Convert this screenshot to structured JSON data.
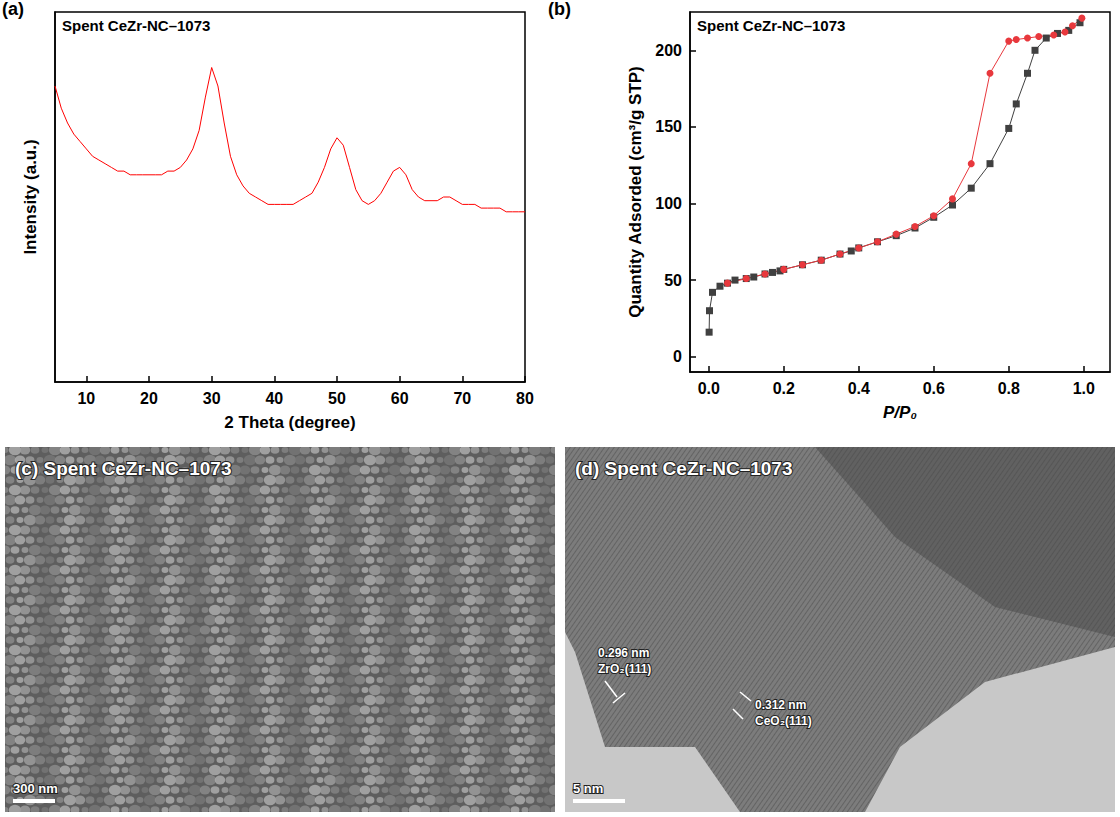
{
  "chart_data": [
    {
      "type": "line",
      "panel_label": "(a)",
      "title": "Spent CeZr-NC–1073",
      "x_label": "2 Theta (degree)",
      "y_label": "Intensity (a.u.)",
      "color": "#ff0000",
      "grid": false,
      "tick_labels": "x",
      "xlim": [
        5,
        80
      ],
      "xticks": [
        10,
        20,
        30,
        40,
        50,
        60,
        70,
        80
      ],
      "ylim": [
        0,
        100
      ],
      "x": [
        5,
        6,
        7,
        8,
        9,
        10,
        11,
        12,
        13,
        14,
        15,
        16,
        17,
        18,
        19,
        20,
        21,
        22,
        23,
        24,
        25,
        26,
        27,
        28,
        29,
        30,
        31,
        32,
        33,
        34,
        35,
        36,
        37,
        38,
        39,
        40,
        41,
        42,
        43,
        44,
        45,
        46,
        47,
        48,
        49,
        50,
        51,
        52,
        53,
        54,
        55,
        56,
        57,
        58,
        59,
        60,
        61,
        62,
        63,
        64,
        65,
        66,
        67,
        68,
        69,
        70,
        71,
        72,
        73,
        74,
        75,
        76,
        77,
        78,
        79,
        80
      ],
      "values": [
        80,
        74,
        70,
        67,
        65,
        63,
        61,
        60,
        59,
        58,
        57,
        57,
        56,
        56,
        56,
        56,
        56,
        56,
        57,
        57,
        58,
        60,
        63,
        68,
        77,
        85,
        80,
        70,
        61,
        56,
        53,
        51,
        50,
        49,
        48,
        48,
        48,
        48,
        48,
        49,
        50,
        51,
        54,
        58,
        63,
        66,
        64,
        58,
        52,
        49,
        48,
        49,
        51,
        54,
        57,
        58,
        56,
        52,
        50,
        49,
        49,
        49,
        50,
        50,
        49,
        48,
        48,
        48,
        47,
        47,
        47,
        47,
        46,
        46,
        46,
        46
      ]
    },
    {
      "type": "line",
      "panel_label": "(b)",
      "title": "Spent CeZr-NC–1073",
      "x_label": "P/P₀",
      "y_label": "Quantity Adsorded (cm³/g STP)",
      "grid": false,
      "xlim": [
        -0.05,
        1.07
      ],
      "xticks": [
        {
          "value": 0,
          "label": "0.0"
        },
        {
          "value": 0.2,
          "label": "0.2"
        },
        {
          "value": 0.4,
          "label": "0.4"
        },
        {
          "value": 0.6,
          "label": "0.6"
        },
        {
          "value": 0.8,
          "label": "0.8"
        },
        {
          "value": 1,
          "label": "1.0"
        }
      ],
      "ylim": [
        -10,
        225
      ],
      "yticks": [
        0,
        50,
        100,
        150,
        200
      ],
      "series": [
        {
          "color": "#404040",
          "marker": "square",
          "x": [
            0.001,
            0.002,
            0.01,
            0.03,
            0.05,
            0.07,
            0.1,
            0.12,
            0.15,
            0.17,
            0.19,
            0.2,
            0.25,
            0.3,
            0.35,
            0.38,
            0.4,
            0.45,
            0.5,
            0.55,
            0.6,
            0.65,
            0.7,
            0.75,
            0.8,
            0.82,
            0.85,
            0.87,
            0.9,
            0.93,
            0.96,
            0.99
          ],
          "values": [
            16,
            30,
            42,
            46,
            48,
            50,
            51,
            52,
            54,
            55,
            56,
            57,
            60,
            63,
            67,
            69,
            71,
            75,
            79,
            84,
            91,
            99,
            110,
            126,
            149,
            165,
            185,
            200,
            208,
            211,
            213,
            218
          ]
        },
        {
          "color": "#e8383d",
          "marker": "circle",
          "x": [
            0.995,
            0.97,
            0.95,
            0.92,
            0.88,
            0.85,
            0.82,
            0.8,
            0.75,
            0.7,
            0.65,
            0.6,
            0.55,
            0.5,
            0.45,
            0.4,
            0.35,
            0.3,
            0.25,
            0.2,
            0.15,
            0.1,
            0.05
          ],
          "values": [
            221,
            216,
            212,
            210,
            209,
            208,
            207,
            206,
            185,
            126,
            103,
            92,
            85,
            80,
            75,
            71,
            67,
            63,
            60,
            57,
            54,
            51,
            48
          ]
        }
      ]
    }
  ],
  "images": [
    {
      "panel_label": "(c)",
      "title": "Spent CeZr-NC–1073",
      "scale_bar": "300 nm"
    },
    {
      "panel_label": "(d)",
      "title": "Spent CeZr-NC–1073",
      "scale_bar": "5 nm",
      "annotations": [
        {
          "spacing": "0.296 nm",
          "plane": "ZrO₂(111)"
        },
        {
          "spacing": "0.312 nm",
          "plane": "CeO₂(111)"
        }
      ]
    }
  ]
}
